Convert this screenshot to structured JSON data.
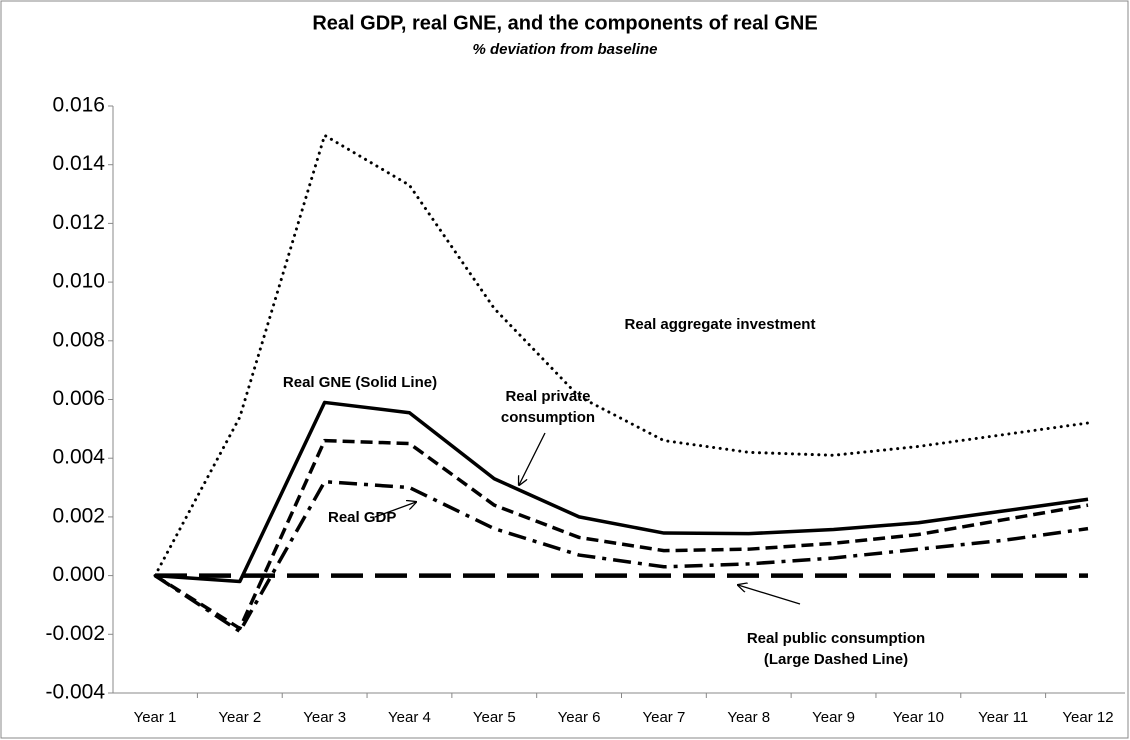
{
  "chart_data": {
    "type": "line",
    "title": "Real GDP, real GNE, and the components of real GNE",
    "subtitle": "% deviation from baseline",
    "categories": [
      "Year 1",
      "Year 2",
      "Year 3",
      "Year 4",
      "Year 5",
      "Year 6",
      "Year 7",
      "Year 8",
      "Year 9",
      "Year 10",
      "Year 11",
      "Year 12"
    ],
    "series": [
      {
        "color": "#000000",
        "style": "dotted",
        "values": [
          0,
          0.0054,
          0.015,
          0.0133,
          0.0091,
          0.0061,
          0.0046,
          0.0042,
          0.0041,
          0.0044,
          0.0048,
          0.0052
        ]
      },
      {
        "color": "#000000",
        "style": "solid",
        "values": [
          0,
          -0.0002,
          0.0059,
          0.00555,
          0.0033,
          0.002,
          0.00145,
          0.00143,
          0.00157,
          0.0018,
          0.0022,
          0.0026
        ]
      },
      {
        "color": "#000000",
        "style": "dashed",
        "values": [
          0,
          -0.0018,
          0.0046,
          0.0045,
          0.0024,
          0.0013,
          0.00085,
          0.0009,
          0.0011,
          0.0014,
          0.0019,
          0.0024
        ]
      },
      {
        "color": "#000000",
        "style": "dashdot",
        "values": [
          0,
          -0.0019,
          0.0032,
          0.003,
          0.0016,
          0.0007,
          0.0003,
          0.0004,
          0.0006,
          0.0009,
          0.0012,
          0.0016
        ]
      },
      {
        "color": "#000000",
        "style": "longdash",
        "values": [
          0,
          0,
          0,
          0,
          0,
          0,
          0,
          0,
          0,
          0,
          0,
          0
        ]
      }
    ],
    "annotations": [
      {
        "lines": [
          "Real aggregate investment"
        ]
      },
      {
        "lines": [
          "Real GNE (Solid Line)"
        ]
      },
      {
        "lines": [
          "Real private",
          "consumption"
        ]
      },
      {
        "lines": [
          "Real GDP"
        ]
      },
      {
        "lines": [
          "Real public consumption",
          "(Large Dashed Line)"
        ]
      }
    ],
    "ylim": [
      -0.004,
      0.016
    ],
    "yticks": [
      {
        "value": -0.004,
        "label": "-0.004"
      },
      {
        "value": -0.002,
        "label": "-0.002"
      },
      {
        "value": 0,
        "label": "0.000"
      },
      {
        "value": 0.002,
        "label": "0.002"
      },
      {
        "value": 0.004,
        "label": "0.004"
      },
      {
        "value": 0.006,
        "label": "0.006"
      },
      {
        "value": 0.008,
        "label": "0.008"
      },
      {
        "value": 0.01,
        "label": "0.010"
      },
      {
        "value": 0.012,
        "label": "0.012"
      },
      {
        "value": 0.014,
        "label": "0.014"
      },
      {
        "value": 0.016,
        "label": "0.016"
      }
    ],
    "grid": false
  }
}
